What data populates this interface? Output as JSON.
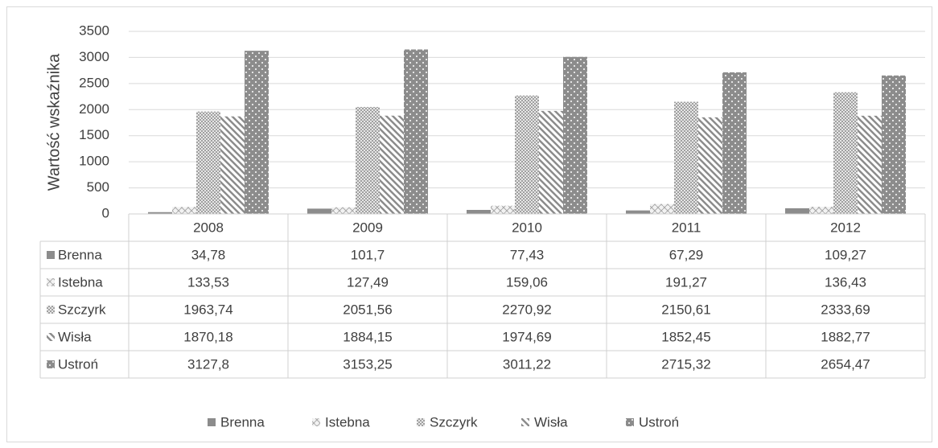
{
  "chart_data": {
    "type": "bar",
    "y_label": "Wartość wskaźnika",
    "categories": [
      "2008",
      "2009",
      "2010",
      "2011",
      "2012"
    ],
    "series": [
      {
        "name": "Brenna",
        "color": "#8c8c8c",
        "values": [
          34.78,
          101.7,
          77.43,
          67.29,
          109.27
        ],
        "value_labels": [
          "34,78",
          "101,7",
          "77,43",
          "67,29",
          "109,27"
        ]
      },
      {
        "name": "Istebna",
        "color": "#a8a8a8",
        "values": [
          133.53,
          127.49,
          159.06,
          191.27,
          136.43
        ],
        "value_labels": [
          "133,53",
          "127,49",
          "159,06",
          "191,27",
          "136,43"
        ]
      },
      {
        "name": "Szczyrk",
        "color": "#a0a0a0",
        "values": [
          1963.74,
          2051.56,
          2270.92,
          2150.61,
          2333.69
        ],
        "value_labels": [
          "1963,74",
          "2051,56",
          "2270,92",
          "2150,61",
          "2333,69"
        ]
      },
      {
        "name": "Wisła",
        "color": "#8c8c8c",
        "values": [
          1870.18,
          1884.15,
          1974.69,
          1852.45,
          1882.77
        ],
        "value_labels": [
          "1870,18",
          "1884,15",
          "1974,69",
          "1852,45",
          "1882,77"
        ]
      },
      {
        "name": "Ustroń",
        "color": "#8c8c8c",
        "values": [
          3127.8,
          3153.25,
          3011.22,
          2715.32,
          2654.47
        ],
        "value_labels": [
          "3127,8",
          "3153,25",
          "3011,22",
          "2715,32",
          "2654,47"
        ]
      }
    ],
    "ylim": [
      0,
      3500
    ],
    "yticks": [
      0,
      500,
      1000,
      1500,
      2000,
      2500,
      3000,
      3500
    ],
    "grid": true,
    "legend": "bottom"
  }
}
